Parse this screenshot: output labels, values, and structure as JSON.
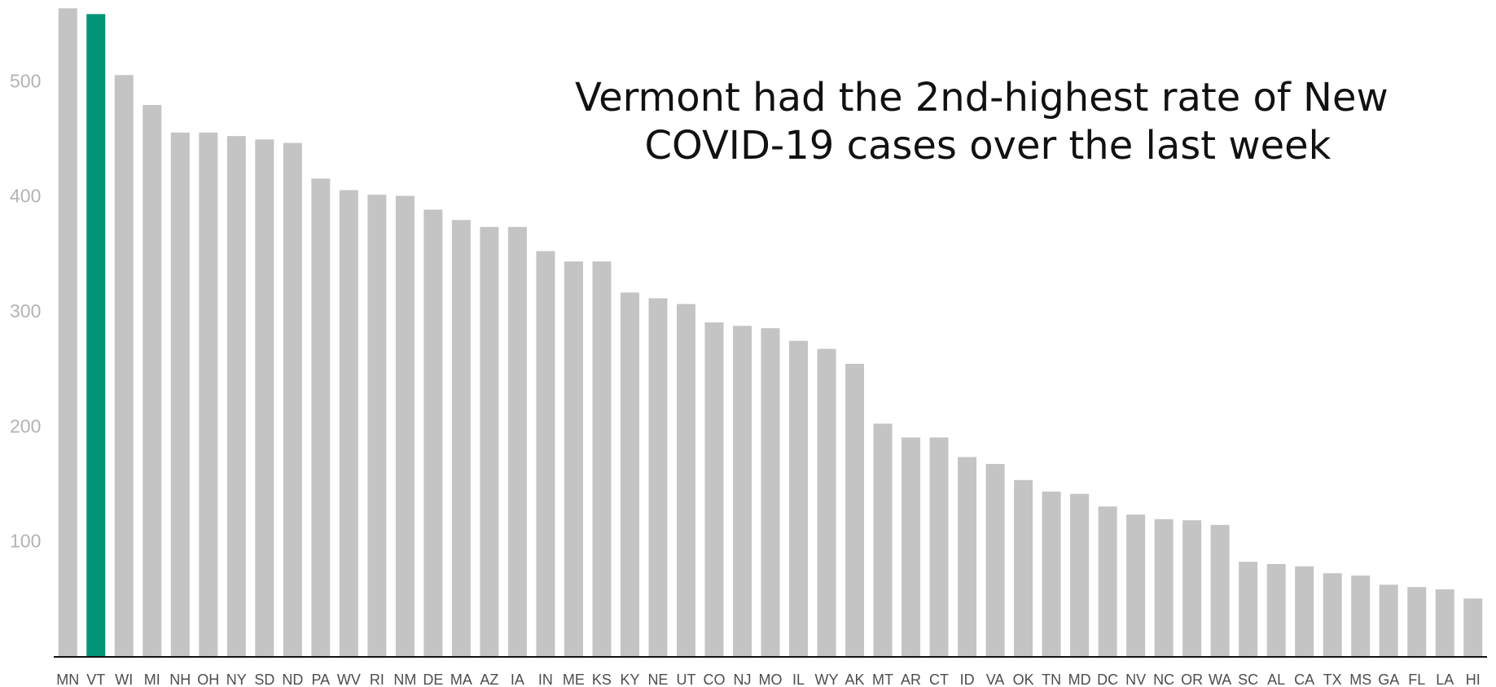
{
  "chart_data": {
    "type": "bar",
    "title_lines": [
      "Vermont had the 2nd-highest rate of New",
      "COVID-19 cases over the last week"
    ],
    "xlabel": "",
    "ylabel": "",
    "ylim": [
      0,
      566
    ],
    "yticks": [
      100,
      200,
      300,
      400,
      500
    ],
    "grid": false,
    "legend": "none",
    "bar_color": "#c4c4c4",
    "highlight_color": "#009477",
    "highlight_category": "VT",
    "categories": [
      "MN",
      "VT",
      "WI",
      "MI",
      "NH",
      "OH",
      "NY",
      "SD",
      "ND",
      "PA",
      "WV",
      "RI",
      "NM",
      "DE",
      "MA",
      "AZ",
      "IA",
      "IN",
      "ME",
      "KS",
      "KY",
      "NE",
      "UT",
      "CO",
      "NJ",
      "MO",
      "IL",
      "WY",
      "AK",
      "MT",
      "AR",
      "CT",
      "ID",
      "VA",
      "OK",
      "TN",
      "MD",
      "DC",
      "NV",
      "NC",
      "OR",
      "WA",
      "SC",
      "AL",
      "CA",
      "TX",
      "MS",
      "GA",
      "FL",
      "LA",
      "HI"
    ],
    "values": [
      563,
      558,
      505,
      479,
      455,
      455,
      452,
      449,
      446,
      415,
      405,
      401,
      400,
      388,
      379,
      373,
      373,
      352,
      343,
      343,
      316,
      311,
      306,
      290,
      287,
      285,
      274,
      267,
      254,
      202,
      190,
      190,
      173,
      167,
      153,
      143,
      141,
      130,
      123,
      119,
      118,
      114,
      82,
      80,
      78,
      72,
      70,
      62,
      60,
      58,
      50
    ]
  }
}
